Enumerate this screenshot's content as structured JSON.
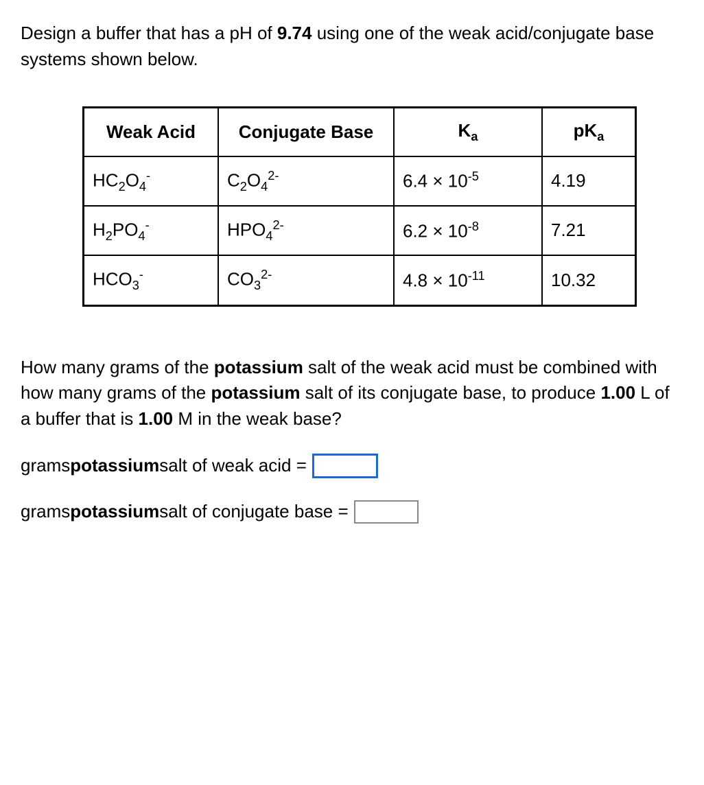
{
  "intro": {
    "t1": "Design a buffer that has a pH of ",
    "ph": "9.74",
    "t2": " using one of the weak acid/conjugate base systems shown below."
  },
  "table": {
    "headers": {
      "weak_acid": "Weak Acid",
      "conj_base": "Conjugate Base",
      "ka_base": "K",
      "ka_sub": "a",
      "pka_base": "pK",
      "pka_sub": "a"
    },
    "rows": [
      {
        "acid_html": "HC<sub>2</sub>O<sub>4</sub><sup>-</sup>",
        "base_html": "C<sub>2</sub>O<sub>4</sub><sup>2-</sup>",
        "ka_html": "6.4 × 10<sup>-5</sup>",
        "pka": "4.19"
      },
      {
        "acid_html": "H<sub>2</sub>PO<sub>4</sub><sup>-</sup>",
        "base_html": "HPO<sub>4</sub><sup>2-</sup>",
        "ka_html": "6.2 × 10<sup>-8</sup>",
        "pka": "7.21"
      },
      {
        "acid_html": "HCO<sub>3</sub><sup>-</sup>",
        "base_html": "CO<sub>3</sub><sup>2-</sup>",
        "ka_html": "4.8 × 10<sup>-11</sup>",
        "pka": "10.32"
      }
    ]
  },
  "q": {
    "p1": "How many grams of the ",
    "b1": "potassium",
    "p2": " salt of the weak acid must be combined with how many grams of the ",
    "b2": "potassium",
    "p3": " salt of its conjugate base, to produce ",
    "vol": "1.00",
    "p4": " L of a buffer that is ",
    "conc": "1.00",
    "p5": " M in the weak base?"
  },
  "a1": {
    "t1": "grams ",
    "b": "potassium",
    "t2": " salt of weak acid ="
  },
  "a2": {
    "t1": "grams ",
    "b": "potassium",
    "t2": " salt of conjugate base ="
  },
  "style": {
    "font_family": "Verdana, Geneva, sans-serif",
    "font_size_pt": 26,
    "border_color": "#000000",
    "input_border": "#888888",
    "input_active_border": "#1a6bd6",
    "background": "#ffffff",
    "text_color": "#000000"
  }
}
